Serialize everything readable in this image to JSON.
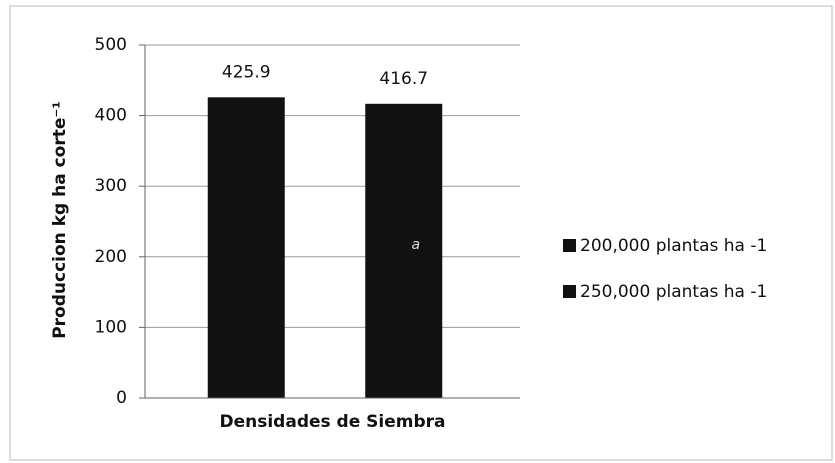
{
  "chart_data": {
    "type": "bar",
    "categories": [
      "Densidades de Siembra"
    ],
    "series": [
      {
        "name": "200,000 plantas ha -1",
        "color": "#111111",
        "values": [
          425.9
        ]
      },
      {
        "name": "250,000 plantas ha -1",
        "color": "#111111",
        "values": [
          416.7
        ]
      }
    ],
    "ylabel": "Produccion kg ha corte⁻¹",
    "annotation": "a",
    "ylim": [
      0,
      500
    ],
    "yticks": [
      0,
      100,
      200,
      300,
      400,
      500
    ],
    "grid": true,
    "legend": "right"
  }
}
